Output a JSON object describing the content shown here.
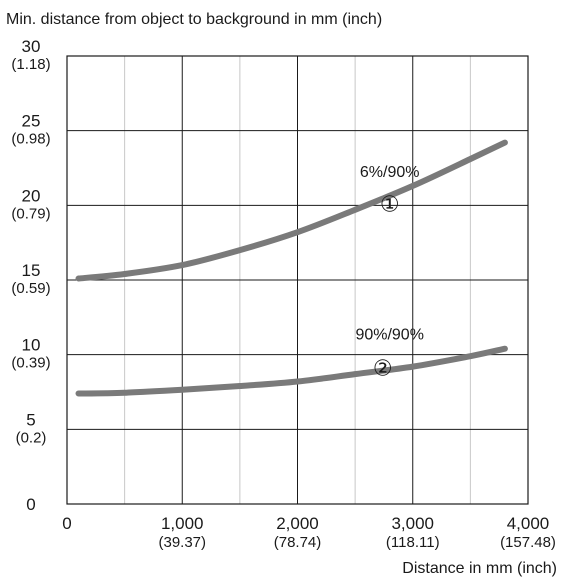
{
  "chart_data": {
    "type": "line",
    "title": "Min. distance from object to background in mm (inch)",
    "xlabel": "Distance in mm (inch)",
    "ylabel": "",
    "xlim": [
      0,
      4000
    ],
    "ylim": [
      0,
      30
    ],
    "grid": true,
    "x_ticks": [
      {
        "value": 0,
        "label": "0",
        "sub": ""
      },
      {
        "value": 1000,
        "label": "1,000",
        "sub": "(39.37)"
      },
      {
        "value": 2000,
        "label": "2,000",
        "sub": "(78.74)"
      },
      {
        "value": 3000,
        "label": "3,000",
        "sub": "(118.11)"
      },
      {
        "value": 4000,
        "label": "4,000",
        "sub": "(157.48)"
      }
    ],
    "y_ticks": [
      {
        "value": 0,
        "label": "0",
        "sub": ""
      },
      {
        "value": 5,
        "label": "5",
        "sub": "(0.2)"
      },
      {
        "value": 10,
        "label": "10",
        "sub": "(0.39)"
      },
      {
        "value": 15,
        "label": "15",
        "sub": "(0.59)"
      },
      {
        "value": 20,
        "label": "20",
        "sub": "(0.79)"
      },
      {
        "value": 25,
        "label": "25",
        "sub": "(0.98)"
      },
      {
        "value": 30,
        "label": "30",
        "sub": "(1.18)"
      }
    ],
    "series": [
      {
        "name": "6%/90%",
        "marker": "①",
        "color": "#7a7a7a",
        "x": [
          100,
          500,
          1000,
          1500,
          2000,
          2500,
          3000,
          3500,
          3800
        ],
        "y": [
          15.1,
          15.4,
          16.0,
          17.0,
          18.2,
          19.7,
          21.3,
          23.1,
          24.2
        ]
      },
      {
        "name": "90%/90%",
        "marker": "②",
        "color": "#7a7a7a",
        "x": [
          100,
          500,
          1000,
          1500,
          2000,
          2500,
          3000,
          3500,
          3800
        ],
        "y": [
          7.4,
          7.45,
          7.65,
          7.9,
          8.2,
          8.7,
          9.2,
          9.9,
          10.4
        ]
      }
    ]
  }
}
